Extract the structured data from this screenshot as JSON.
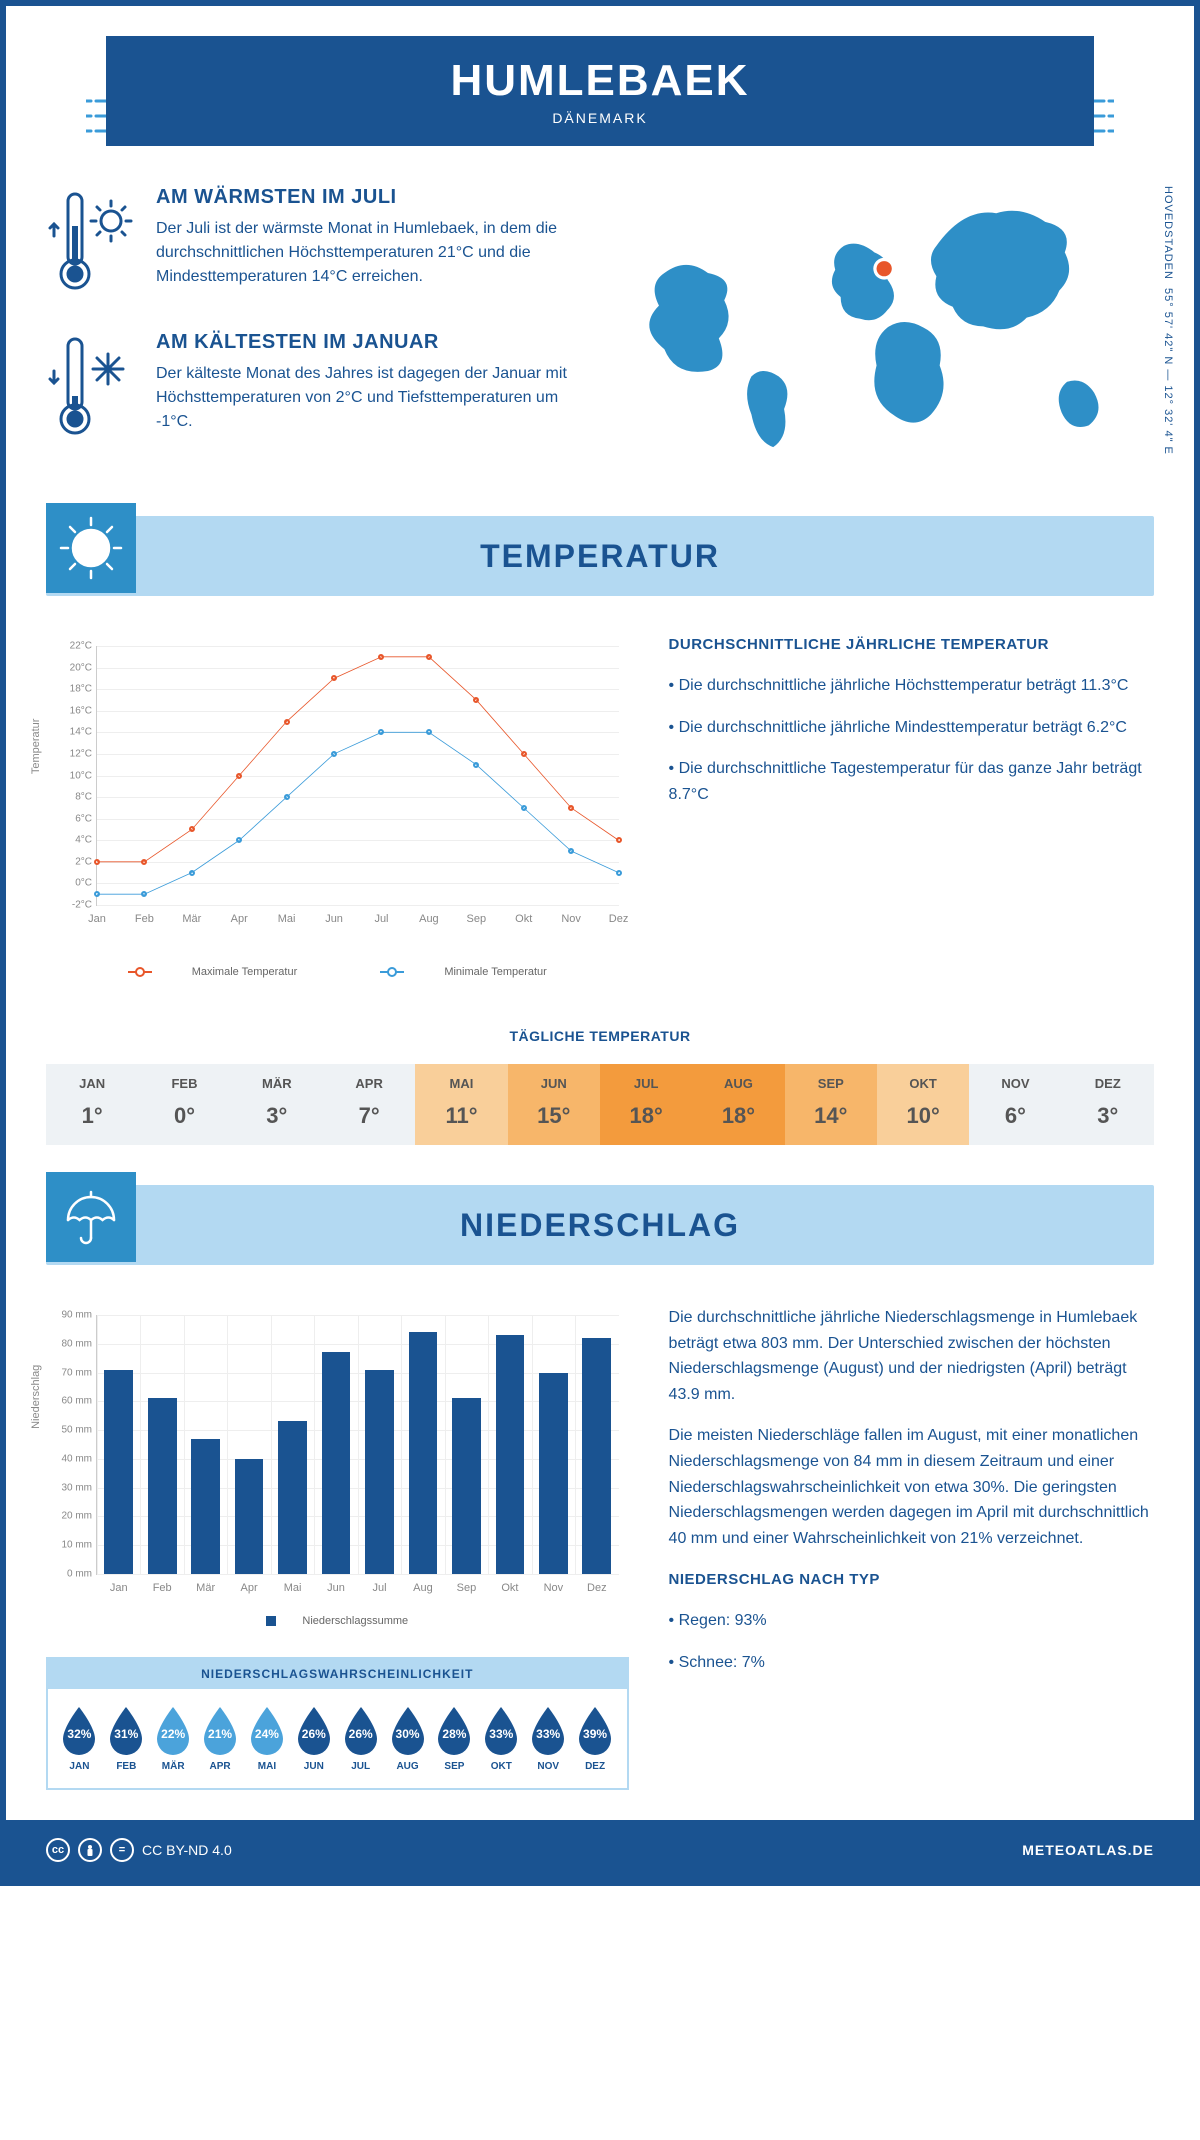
{
  "header": {
    "city": "HUMLEBAEK",
    "country": "DÄNEMARK"
  },
  "coords": {
    "text": "55° 57' 42\" N — 12° 32' 4\" E",
    "region": "HOVEDSTADEN"
  },
  "warm": {
    "title": "AM WÄRMSTEN IM JULI",
    "body": "Der Juli ist der wärmste Monat in Humlebaek, in dem die durchschnittlichen Höchsttemperaturen 21°C und die Mindesttemperaturen 14°C erreichen."
  },
  "cold": {
    "title": "AM KÄLTESTEN IM JANUAR",
    "body": "Der kälteste Monat des Jahres ist dagegen der Januar mit Höchsttemperaturen von 2°C und Tiefsttemperaturen um -1°C."
  },
  "section_temp": "TEMPERATUR",
  "section_precip": "NIEDERSCHLAG",
  "months": [
    "Jan",
    "Feb",
    "Mär",
    "Apr",
    "Mai",
    "Jun",
    "Jul",
    "Aug",
    "Sep",
    "Okt",
    "Nov",
    "Dez"
  ],
  "months_upper": [
    "JAN",
    "FEB",
    "MÄR",
    "APR",
    "MAI",
    "JUN",
    "JUL",
    "AUG",
    "SEP",
    "OKT",
    "NOV",
    "DEZ"
  ],
  "temp_chart": {
    "ylabel": "Temperatur",
    "ymin": -2,
    "ymax": 22,
    "ystep": 2,
    "max_series": {
      "label": "Maximale Temperatur",
      "color": "#e8562a",
      "values": [
        2,
        2,
        5,
        10,
        15,
        19,
        21,
        21,
        17,
        12,
        7,
        4
      ]
    },
    "min_series": {
      "label": "Minimale Temperatur",
      "color": "#3a9bd9",
      "values": [
        -1,
        -1,
        1,
        4,
        8,
        12,
        14,
        14,
        11,
        7,
        3,
        1
      ]
    }
  },
  "temp_text": {
    "title": "DURCHSCHNITTLICHE JÄHRLICHE TEMPERATUR",
    "b1": "• Die durchschnittliche jährliche Höchsttemperatur beträgt 11.3°C",
    "b2": "• Die durchschnittliche jährliche Mindesttemperatur beträgt 6.2°C",
    "b3": "• Die durchschnittliche Tagestemperatur für das ganze Jahr beträgt 8.7°C"
  },
  "daily": {
    "title": "TÄGLICHE TEMPERATUR",
    "values": [
      1,
      0,
      3,
      7,
      11,
      15,
      18,
      18,
      14,
      10,
      6,
      3
    ],
    "colors": [
      "#eef2f5",
      "#eef2f5",
      "#eef2f5",
      "#eef2f5",
      "#f9cf9a",
      "#f7b66a",
      "#f39b3d",
      "#f39b3d",
      "#f7b66a",
      "#f9cf9a",
      "#eef2f5",
      "#eef2f5"
    ]
  },
  "precip_chart": {
    "ylabel": "Niederschlag",
    "ymax": 90,
    "ystep": 10,
    "label": "Niederschlagssumme",
    "color": "#1a5391",
    "values": [
      71,
      61,
      47,
      40,
      53,
      77,
      71,
      84,
      61,
      83,
      70,
      82
    ]
  },
  "precip_text": {
    "p1": "Die durchschnittliche jährliche Niederschlagsmenge in Humlebaek beträgt etwa 803 mm. Der Unterschied zwischen der höchsten Niederschlagsmenge (August) und der niedrigsten (April) beträgt 43.9 mm.",
    "p2": "Die meisten Niederschläge fallen im August, mit einer monatlichen Niederschlagsmenge von 84 mm in diesem Zeitraum und einer Niederschlagswahrscheinlichkeit von etwa 30%. Die geringsten Niederschlagsmengen werden dagegen im April mit durchschnittlich 40 mm und einer Wahrscheinlichkeit von 21% verzeichnet.",
    "type_title": "NIEDERSCHLAG NACH TYP",
    "type1": "• Regen: 93%",
    "type2": "• Schnee: 7%"
  },
  "prob": {
    "title": "NIEDERSCHLAGSWAHRSCHEINLICHKEIT",
    "values": [
      32,
      31,
      22,
      21,
      24,
      26,
      26,
      30,
      28,
      33,
      33,
      39
    ],
    "colors": [
      "#1a5391",
      "#1a5391",
      "#4ba3db",
      "#4ba3db",
      "#4ba3db",
      "#1a5391",
      "#1a5391",
      "#1a5391",
      "#1a5391",
      "#1a5391",
      "#1a5391",
      "#1a5391"
    ]
  },
  "footer": {
    "license": "CC BY-ND 4.0",
    "site": "METEOATLAS.DE"
  }
}
